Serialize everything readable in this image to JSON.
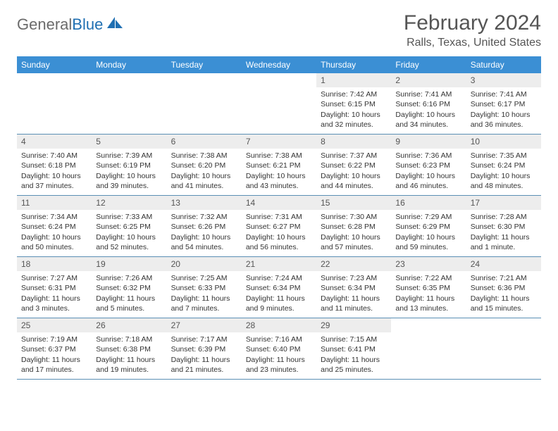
{
  "logo": {
    "text1": "General",
    "text2": "Blue"
  },
  "title": "February 2024",
  "location": "Ralls, Texas, United States",
  "colors": {
    "header_bg": "#3b8fd4",
    "header_text": "#ffffff",
    "daynum_bg": "#ededed",
    "row_border": "#5a8fb5",
    "logo_gray": "#6b6b6b",
    "logo_blue": "#1f6fb2"
  },
  "weekdays": [
    "Sunday",
    "Monday",
    "Tuesday",
    "Wednesday",
    "Thursday",
    "Friday",
    "Saturday"
  ],
  "weeks": [
    [
      {
        "n": "",
        "lines": []
      },
      {
        "n": "",
        "lines": []
      },
      {
        "n": "",
        "lines": []
      },
      {
        "n": "",
        "lines": []
      },
      {
        "n": "1",
        "lines": [
          "Sunrise: 7:42 AM",
          "Sunset: 6:15 PM",
          "Daylight: 10 hours",
          "and 32 minutes."
        ]
      },
      {
        "n": "2",
        "lines": [
          "Sunrise: 7:41 AM",
          "Sunset: 6:16 PM",
          "Daylight: 10 hours",
          "and 34 minutes."
        ]
      },
      {
        "n": "3",
        "lines": [
          "Sunrise: 7:41 AM",
          "Sunset: 6:17 PM",
          "Daylight: 10 hours",
          "and 36 minutes."
        ]
      }
    ],
    [
      {
        "n": "4",
        "lines": [
          "Sunrise: 7:40 AM",
          "Sunset: 6:18 PM",
          "Daylight: 10 hours",
          "and 37 minutes."
        ]
      },
      {
        "n": "5",
        "lines": [
          "Sunrise: 7:39 AM",
          "Sunset: 6:19 PM",
          "Daylight: 10 hours",
          "and 39 minutes."
        ]
      },
      {
        "n": "6",
        "lines": [
          "Sunrise: 7:38 AM",
          "Sunset: 6:20 PM",
          "Daylight: 10 hours",
          "and 41 minutes."
        ]
      },
      {
        "n": "7",
        "lines": [
          "Sunrise: 7:38 AM",
          "Sunset: 6:21 PM",
          "Daylight: 10 hours",
          "and 43 minutes."
        ]
      },
      {
        "n": "8",
        "lines": [
          "Sunrise: 7:37 AM",
          "Sunset: 6:22 PM",
          "Daylight: 10 hours",
          "and 44 minutes."
        ]
      },
      {
        "n": "9",
        "lines": [
          "Sunrise: 7:36 AM",
          "Sunset: 6:23 PM",
          "Daylight: 10 hours",
          "and 46 minutes."
        ]
      },
      {
        "n": "10",
        "lines": [
          "Sunrise: 7:35 AM",
          "Sunset: 6:24 PM",
          "Daylight: 10 hours",
          "and 48 minutes."
        ]
      }
    ],
    [
      {
        "n": "11",
        "lines": [
          "Sunrise: 7:34 AM",
          "Sunset: 6:24 PM",
          "Daylight: 10 hours",
          "and 50 minutes."
        ]
      },
      {
        "n": "12",
        "lines": [
          "Sunrise: 7:33 AM",
          "Sunset: 6:25 PM",
          "Daylight: 10 hours",
          "and 52 minutes."
        ]
      },
      {
        "n": "13",
        "lines": [
          "Sunrise: 7:32 AM",
          "Sunset: 6:26 PM",
          "Daylight: 10 hours",
          "and 54 minutes."
        ]
      },
      {
        "n": "14",
        "lines": [
          "Sunrise: 7:31 AM",
          "Sunset: 6:27 PM",
          "Daylight: 10 hours",
          "and 56 minutes."
        ]
      },
      {
        "n": "15",
        "lines": [
          "Sunrise: 7:30 AM",
          "Sunset: 6:28 PM",
          "Daylight: 10 hours",
          "and 57 minutes."
        ]
      },
      {
        "n": "16",
        "lines": [
          "Sunrise: 7:29 AM",
          "Sunset: 6:29 PM",
          "Daylight: 10 hours",
          "and 59 minutes."
        ]
      },
      {
        "n": "17",
        "lines": [
          "Sunrise: 7:28 AM",
          "Sunset: 6:30 PM",
          "Daylight: 11 hours",
          "and 1 minute."
        ]
      }
    ],
    [
      {
        "n": "18",
        "lines": [
          "Sunrise: 7:27 AM",
          "Sunset: 6:31 PM",
          "Daylight: 11 hours",
          "and 3 minutes."
        ]
      },
      {
        "n": "19",
        "lines": [
          "Sunrise: 7:26 AM",
          "Sunset: 6:32 PM",
          "Daylight: 11 hours",
          "and 5 minutes."
        ]
      },
      {
        "n": "20",
        "lines": [
          "Sunrise: 7:25 AM",
          "Sunset: 6:33 PM",
          "Daylight: 11 hours",
          "and 7 minutes."
        ]
      },
      {
        "n": "21",
        "lines": [
          "Sunrise: 7:24 AM",
          "Sunset: 6:34 PM",
          "Daylight: 11 hours",
          "and 9 minutes."
        ]
      },
      {
        "n": "22",
        "lines": [
          "Sunrise: 7:23 AM",
          "Sunset: 6:34 PM",
          "Daylight: 11 hours",
          "and 11 minutes."
        ]
      },
      {
        "n": "23",
        "lines": [
          "Sunrise: 7:22 AM",
          "Sunset: 6:35 PM",
          "Daylight: 11 hours",
          "and 13 minutes."
        ]
      },
      {
        "n": "24",
        "lines": [
          "Sunrise: 7:21 AM",
          "Sunset: 6:36 PM",
          "Daylight: 11 hours",
          "and 15 minutes."
        ]
      }
    ],
    [
      {
        "n": "25",
        "lines": [
          "Sunrise: 7:19 AM",
          "Sunset: 6:37 PM",
          "Daylight: 11 hours",
          "and 17 minutes."
        ]
      },
      {
        "n": "26",
        "lines": [
          "Sunrise: 7:18 AM",
          "Sunset: 6:38 PM",
          "Daylight: 11 hours",
          "and 19 minutes."
        ]
      },
      {
        "n": "27",
        "lines": [
          "Sunrise: 7:17 AM",
          "Sunset: 6:39 PM",
          "Daylight: 11 hours",
          "and 21 minutes."
        ]
      },
      {
        "n": "28",
        "lines": [
          "Sunrise: 7:16 AM",
          "Sunset: 6:40 PM",
          "Daylight: 11 hours",
          "and 23 minutes."
        ]
      },
      {
        "n": "29",
        "lines": [
          "Sunrise: 7:15 AM",
          "Sunset: 6:41 PM",
          "Daylight: 11 hours",
          "and 25 minutes."
        ]
      },
      {
        "n": "",
        "lines": []
      },
      {
        "n": "",
        "lines": []
      }
    ]
  ]
}
